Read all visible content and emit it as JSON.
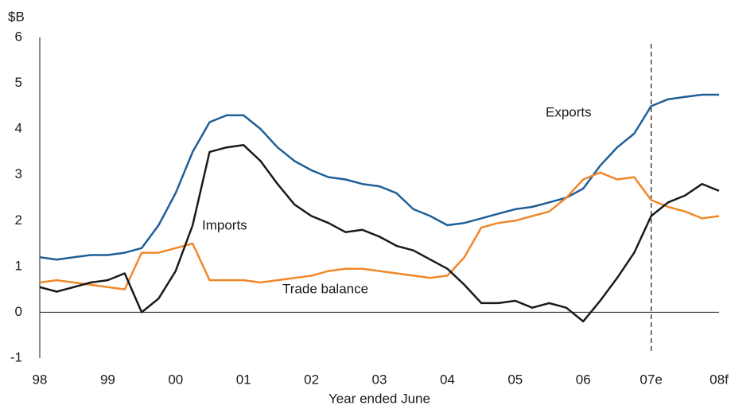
{
  "chart_data": {
    "type": "line",
    "y_unit": "$B",
    "x_label": "Year ended June",
    "x": [
      1998,
      1998.25,
      1998.5,
      1998.75,
      1999,
      1999.25,
      1999.5,
      1999.75,
      2000,
      2000.25,
      2000.5,
      2000.75,
      2001,
      2001.25,
      2001.5,
      2001.75,
      2002,
      2002.25,
      2002.5,
      2002.75,
      2003,
      2003.25,
      2003.5,
      2003.75,
      2004,
      2004.25,
      2004.5,
      2004.75,
      2005,
      2005.25,
      2005.5,
      2005.75,
      2006,
      2006.25,
      2006.5,
      2006.75,
      2007,
      2007.25,
      2007.5,
      2007.75,
      2008
    ],
    "series": [
      {
        "name": "Exports",
        "color": "#1f5f99",
        "values": [
          1.2,
          1.15,
          1.2,
          1.25,
          1.25,
          1.3,
          1.4,
          1.9,
          2.6,
          3.5,
          4.15,
          4.3,
          4.3,
          4.0,
          3.6,
          3.3,
          3.1,
          2.95,
          2.9,
          2.8,
          2.75,
          2.6,
          2.25,
          2.1,
          1.9,
          1.95,
          2.05,
          2.15,
          2.25,
          2.3,
          2.4,
          2.5,
          2.7,
          3.2,
          3.6,
          3.9,
          4.5,
          4.65,
          4.7,
          4.75,
          4.75
        ]
      },
      {
        "name": "Imports",
        "color": "#f0882a",
        "values": [
          0.65,
          0.7,
          0.65,
          0.6,
          0.55,
          0.5,
          1.3,
          1.3,
          1.4,
          1.5,
          0.7,
          0.7,
          0.7,
          0.65,
          0.7,
          0.75,
          0.8,
          0.9,
          0.95,
          0.95,
          0.9,
          0.85,
          0.8,
          0.75,
          0.8,
          1.2,
          1.85,
          1.95,
          2.0,
          2.1,
          2.2,
          2.5,
          2.9,
          3.05,
          2.9,
          2.95,
          2.45,
          2.3,
          2.2,
          2.05,
          2.1
        ]
      },
      {
        "name": "Trade balance",
        "color": "#1a1a1a",
        "values": [
          0.55,
          0.45,
          0.55,
          0.65,
          0.7,
          0.85,
          0.0,
          0.3,
          0.9,
          1.9,
          3.5,
          3.6,
          3.65,
          3.3,
          2.8,
          2.35,
          2.1,
          1.95,
          1.75,
          1.8,
          1.65,
          1.45,
          1.35,
          1.15,
          0.95,
          0.6,
          0.2,
          0.2,
          0.25,
          0.1,
          0.2,
          0.1,
          -0.2,
          0.25,
          0.75,
          1.3,
          2.1,
          2.4,
          2.55,
          2.8,
          2.65
        ]
      }
    ],
    "forecast_line": 2007,
    "xlim": [
      1998,
      2008
    ],
    "xticks": [
      {
        "value": 1998,
        "label": "98"
      },
      {
        "value": 1999,
        "label": "99"
      },
      {
        "value": 2000,
        "label": "00"
      },
      {
        "value": 2001,
        "label": "01"
      },
      {
        "value": 2002,
        "label": "02"
      },
      {
        "value": 2003,
        "label": "03"
      },
      {
        "value": 2004,
        "label": "04"
      },
      {
        "value": 2005,
        "label": "05"
      },
      {
        "value": 2006,
        "label": "06"
      },
      {
        "value": 2007,
        "label": "07e"
      },
      {
        "value": 2008,
        "label": "08f"
      }
    ],
    "ylim": [
      -1,
      6
    ],
    "yticks": [
      -1,
      0,
      1,
      2,
      3,
      4,
      5,
      6
    ]
  }
}
